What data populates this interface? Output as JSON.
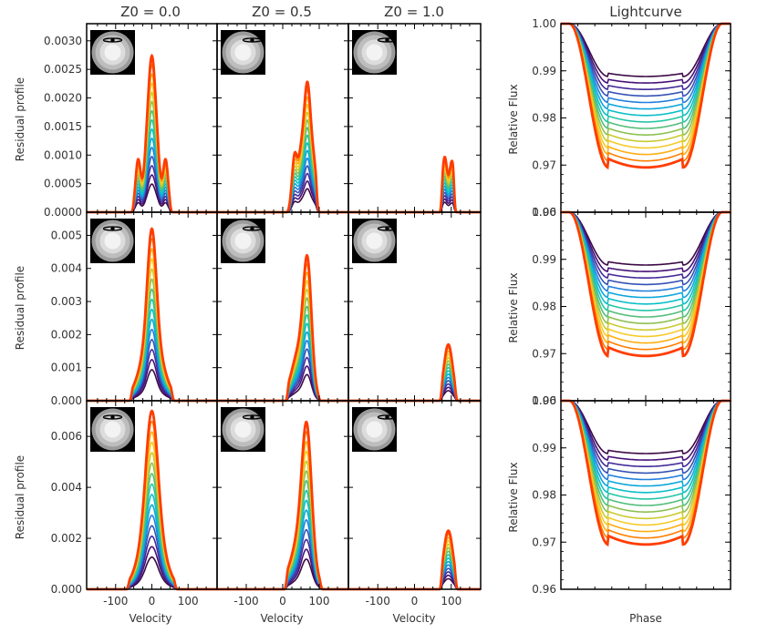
{
  "figure": {
    "column_titles": [
      "Z0 = 0.0",
      "Z0 = 0.5",
      "Z0 = 1.0",
      "Lightcurve"
    ],
    "profile_ylabel": "Residual profile",
    "velocity_label": "Velocity",
    "flux_ylabel": "Relative Flux",
    "phase_label": "Phase"
  },
  "chart_data": [
    {
      "type": "line",
      "description_rows": "residual line profiles, 3 rows x 3 columns; each panel shows a family of 15 curves colored dark purple to red",
      "xlabel": "Velocity",
      "xlim": [
        -180,
        180
      ],
      "xticks": [
        -100,
        0,
        100
      ],
      "ylabel": "Residual profile",
      "n_curves": 15,
      "palette": [
        "#3b0a45",
        "#4a148c",
        "#3949ab",
        "#1e88e5",
        "#00bcd4",
        "#26c6a6",
        "#66bb6a",
        "#c0ca33",
        "#ffca28",
        "#ff9800",
        "#ff3d00"
      ],
      "rows": [
        {
          "ylim": [
            0,
            0.0033
          ],
          "yticks": [
            0.0,
            0.0005,
            0.001,
            0.0015,
            0.002,
            0.0025,
            0.003
          ],
          "ytick_labels": [
            "0.0000",
            "0.0005",
            "0.0010",
            "0.0015",
            "0.0020",
            "0.0025",
            "0.0030"
          ],
          "panels": [
            {
              "title": "Z0 = 0.0",
              "peaks": [
                {
                  "c": 0,
                  "w": 9,
                  "a": 0.0022
                },
                {
                  "c": -38,
                  "w": 7,
                  "a": 0.0009
                },
                {
                  "c": 38,
                  "w": 7,
                  "a": 0.0009
                },
                {
                  "c": -14,
                  "w": 9,
                  "a": 0.0009
                },
                {
                  "c": 14,
                  "w": 9,
                  "a": 0.0009
                }
              ],
              "support": [
                -58,
                58
              ]
            },
            {
              "title": "Z0 = 0.5",
              "peaks": [
                {
                  "c": 68,
                  "w": 9,
                  "a": 0.0021
                },
                {
                  "c": 32,
                  "w": 7,
                  "a": 0.0009
                },
                {
                  "c": 50,
                  "w": 9,
                  "a": 0.0009
                },
                {
                  "c": 86,
                  "w": 8,
                  "a": 0.0007
                }
              ],
              "support": [
                8,
                100
              ]
            },
            {
              "title": "Z0 = 1.0",
              "peaks": [
                {
                  "c": 82,
                  "w": 7,
                  "a": 0.00095
                },
                {
                  "c": 102,
                  "w": 7,
                  "a": 0.00088
                }
              ],
              "support": [
                68,
                114
              ]
            }
          ]
        },
        {
          "ylim": [
            0,
            0.0057
          ],
          "yticks": [
            0.0,
            0.001,
            0.002,
            0.003,
            0.004,
            0.005
          ],
          "ytick_labels": [
            "0.000",
            "0.001",
            "0.002",
            "0.003",
            "0.004",
            "0.005"
          ],
          "panels": [
            {
              "title": "Z0 = 0.0",
              "peaks": [
                {
                  "c": 0,
                  "w": 12,
                  "a": 0.0033
                },
                {
                  "c": 0,
                  "w": 30,
                  "a": 0.0019
                }
              ],
              "support": [
                -62,
                62
              ]
            },
            {
              "title": "Z0 = 0.5",
              "peaks": [
                {
                  "c": 68,
                  "w": 11,
                  "a": 0.0033
                },
                {
                  "c": 48,
                  "w": 22,
                  "a": 0.0016
                }
              ],
              "support": [
                8,
                105
              ]
            },
            {
              "title": "Z0 = 1.0",
              "peaks": [
                {
                  "c": 92,
                  "w": 12,
                  "a": 0.0017
                }
              ],
              "support": [
                68,
                118
              ]
            }
          ]
        },
        {
          "ylim": [
            0,
            0.0074
          ],
          "yticks": [
            0.0,
            0.002,
            0.004,
            0.006
          ],
          "ytick_labels": [
            "0.000",
            "0.002",
            "0.004",
            "0.006"
          ],
          "panels": [
            {
              "title": "Z0 = 0.0",
              "peaks": [
                {
                  "c": 0,
                  "w": 16,
                  "a": 0.0045
                },
                {
                  "c": 0,
                  "w": 32,
                  "a": 0.0025
                }
              ],
              "support": [
                -70,
                70
              ]
            },
            {
              "title": "Z0 = 0.5",
              "peaks": [
                {
                  "c": 66,
                  "w": 13,
                  "a": 0.0048
                },
                {
                  "c": 50,
                  "w": 26,
                  "a": 0.0021
                }
              ],
              "support": [
                5,
                110
              ]
            },
            {
              "title": "Z0 = 1.0",
              "peaks": [
                {
                  "c": 92,
                  "w": 13,
                  "a": 0.0023
                }
              ],
              "support": [
                68,
                118
              ]
            }
          ]
        }
      ]
    },
    {
      "type": "line",
      "title": "Lightcurve",
      "xlabel": "Phase",
      "ylabel": "Relative Flux",
      "xlim": [
        0,
        1
      ],
      "ylim": [
        0.96,
        1.0
      ],
      "yticks": [
        0.96,
        0.97,
        0.98,
        0.99,
        1.0
      ],
      "ytick_labels": [
        "0.96",
        "0.97",
        "0.98",
        "0.99",
        "1.00"
      ],
      "n_curves": 15,
      "transit": {
        "ingress_start": 0.05,
        "ingress_end": 0.28,
        "egress_start": 0.72,
        "egress_end": 0.95
      },
      "depth_min": 0.0112,
      "depth_max": 0.0305,
      "panels": 3
    }
  ]
}
